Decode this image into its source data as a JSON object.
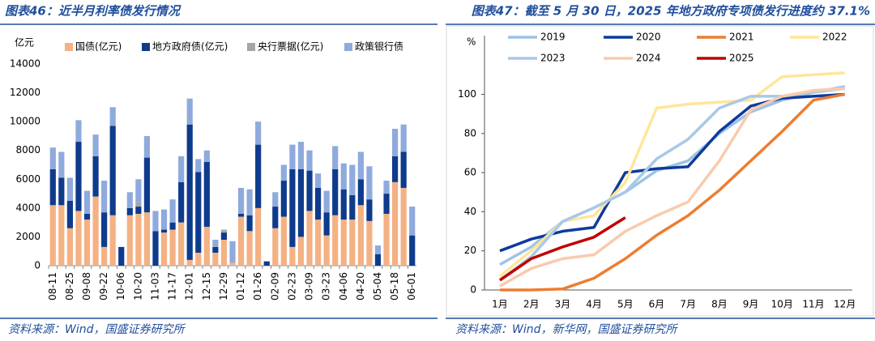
{
  "chart_data": [
    {
      "type": "bar",
      "stacked": true,
      "title": "图表46：近半月利率债发行情况",
      "source": "资料来源：Wind，国盛证券研究所",
      "y_label": "亿元",
      "categories": [
        "08-11",
        null,
        "08-25",
        null,
        "09-08",
        null,
        "09-22",
        null,
        "10-06",
        null,
        "10-20",
        null,
        "11-03",
        null,
        "11-17",
        null,
        "12-01",
        null,
        "12-15",
        null,
        "12-29",
        null,
        "01-12",
        null,
        "01-26",
        null,
        "02-09",
        null,
        "02-23",
        null,
        "03-09",
        null,
        "03-23",
        null,
        "04-06",
        null,
        "04-20",
        null,
        "05-04",
        null,
        "05-18",
        null,
        "06-01"
      ],
      "series": [
        {
          "name": "国债(亿元)",
          "color": "#f4b183",
          "values": [
            4200,
            4200,
            2600,
            3800,
            3200,
            4800,
            1300,
            3500,
            0,
            3500,
            3600,
            3700,
            0,
            2300,
            2500,
            3000,
            400,
            900,
            2700,
            900,
            1800,
            200,
            3400,
            2400,
            4000,
            0,
            2600,
            3400,
            1300,
            2000,
            3800,
            3200,
            2100,
            3500,
            3200,
            3200,
            4200,
            3100,
            0,
            3600,
            5800,
            5400,
            0
          ]
        },
        {
          "name": "地方政府债(亿元)",
          "color": "#0e3b8c",
          "values": [
            2500,
            1900,
            1900,
            4800,
            400,
            2800,
            2400,
            6200,
            1300,
            500,
            500,
            3800,
            2400,
            200,
            500,
            2800,
            9400,
            5600,
            4500,
            400,
            500,
            0,
            200,
            1100,
            4400,
            300,
            1500,
            2500,
            5400,
            4700,
            2800,
            2200,
            1600,
            3200,
            2100,
            1700,
            1800,
            1500,
            800,
            1400,
            1800,
            2500,
            2100
          ]
        },
        {
          "name": "央行票据(亿元)",
          "color": "#a6a6a6",
          "values": [
            0,
            0,
            0,
            0,
            0,
            0,
            0,
            0,
            0,
            0,
            300,
            0,
            0,
            0,
            0,
            0,
            0,
            0,
            0,
            0,
            200,
            0,
            0,
            0,
            0,
            0,
            0,
            0,
            0,
            0,
            0,
            0,
            0,
            0,
            0,
            0,
            0,
            0,
            0,
            0,
            0,
            0,
            0
          ]
        },
        {
          "name": "政策银行债",
          "color": "#8faadc",
          "values": [
            1500,
            1800,
            1600,
            1500,
            1600,
            1500,
            2200,
            1300,
            0,
            1100,
            1600,
            1500,
            1400,
            1400,
            1600,
            1800,
            1800,
            900,
            800,
            500,
            0,
            1500,
            1800,
            1800,
            1600,
            0,
            1000,
            1100,
            1700,
            1900,
            1400,
            1000,
            1500,
            1600,
            1800,
            2100,
            1900,
            2300,
            600,
            900,
            1900,
            1900,
            2000
          ]
        }
      ],
      "ylim": [
        0,
        14000
      ],
      "yticks": [
        0,
        2000,
        4000,
        6000,
        8000,
        10000,
        12000,
        14000
      ]
    },
    {
      "type": "line",
      "title": "图表47：截至 5 月 30 日，2025 年地方政府专项债发行进度约 37.1%",
      "source": "资料来源：Wind，新华网，国盛证券研究所",
      "y_label": "%",
      "categories": [
        "1月",
        "2月",
        "3月",
        "4月",
        "5月",
        "6月",
        "7月",
        "8月",
        "9月",
        "10月",
        "11月",
        "12月"
      ],
      "series": [
        {
          "name": "2019",
          "color": "#9dc3e6",
          "values": [
            13,
            22,
            35,
            42,
            50,
            61,
            66,
            80,
            91,
            97,
            101,
            104
          ]
        },
        {
          "name": "2020",
          "color": "#0e3b9c",
          "values": [
            20,
            26,
            30,
            32,
            60,
            62,
            63,
            81,
            94,
            98,
            99,
            100
          ]
        },
        {
          "name": "2021",
          "color": "#ed7d31",
          "values": [
            0,
            0,
            0.5,
            6,
            16,
            28,
            38,
            51,
            66,
            81,
            97,
            100
          ]
        },
        {
          "name": "2022",
          "color": "#ffe699",
          "values": [
            7,
            20,
            35,
            38,
            55,
            93,
            95,
            96,
            97,
            109,
            110,
            111
          ]
        },
        {
          "name": "2023",
          "color": "#a9c8e8",
          "values": [
            5,
            17,
            35,
            42,
            50,
            67,
            77,
            93,
            99,
            99,
            101,
            103
          ]
        },
        {
          "name": "2024",
          "color": "#f8cbad",
          "values": [
            2,
            11,
            16,
            18,
            30,
            38,
            45,
            66,
            92,
            99,
            102,
            103
          ]
        },
        {
          "name": "2025",
          "color": "#c00000",
          "values": [
            5,
            16,
            22,
            27,
            37,
            null,
            null,
            null,
            null,
            null,
            null,
            null
          ]
        }
      ],
      "ylim": [
        0,
        130
      ],
      "yticks": [
        0,
        20,
        40,
        60,
        80,
        100
      ]
    }
  ]
}
